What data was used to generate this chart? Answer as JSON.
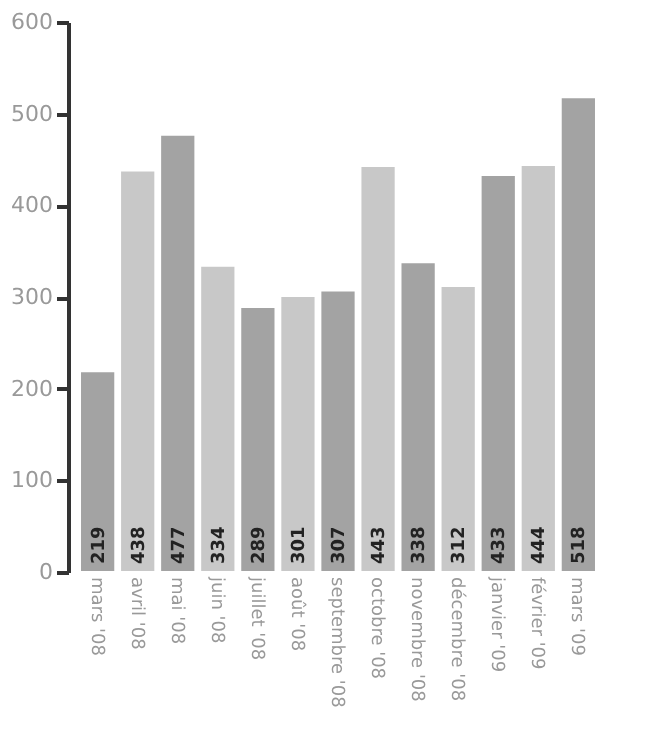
{
  "chart_data": {
    "type": "bar",
    "categories": [
      "mars '08",
      "avril '08",
      "mai '08",
      "juin '08",
      "juillet '08",
      "août '08",
      "septembre '08",
      "octobre '08",
      "novembre '08",
      "décembre '08",
      "janvier '09",
      "février '09",
      "mars '09"
    ],
    "values": [
      219,
      438,
      477,
      334,
      289,
      301,
      307,
      443,
      338,
      312,
      433,
      444,
      518
    ],
    "colors": [
      "#a3a3a3",
      "#c8c8c8",
      "#a3a3a3",
      "#c8c8c8",
      "#a3a3a3",
      "#c8c8c8",
      "#a3a3a3",
      "#c8c8c8",
      "#a3a3a3",
      "#c8c8c8",
      "#a3a3a3",
      "#c8c8c8",
      "#a3a3a3"
    ],
    "ylim": [
      0,
      600
    ],
    "yticks": [
      0,
      100,
      200,
      300,
      400,
      500,
      600
    ],
    "data_labels": true
  }
}
